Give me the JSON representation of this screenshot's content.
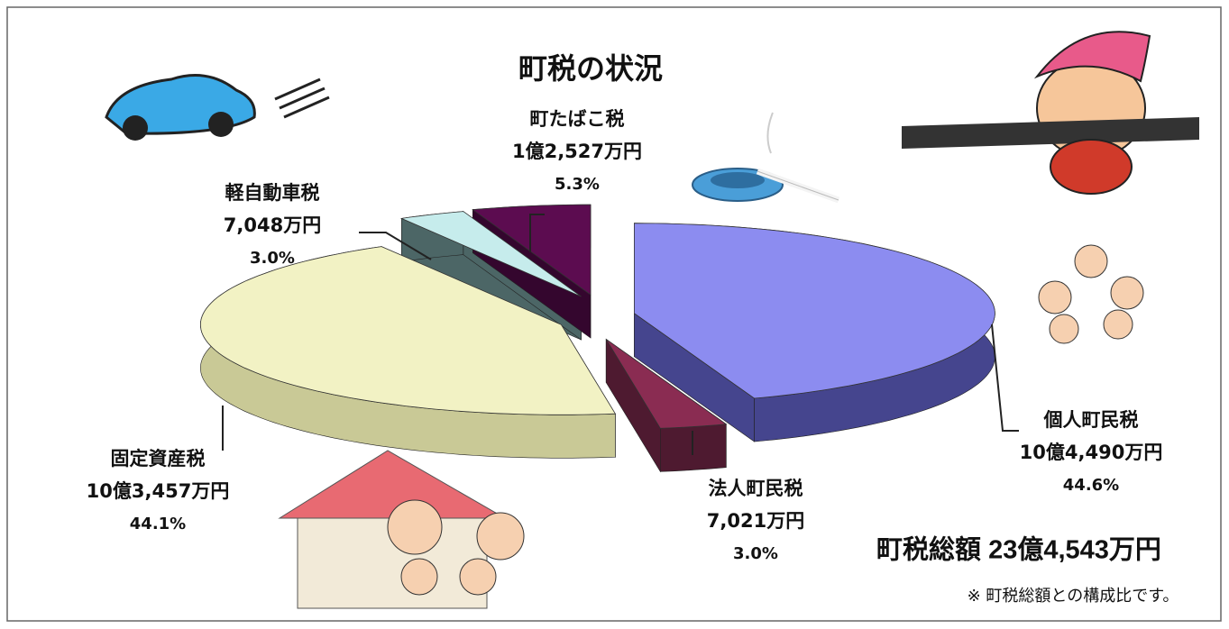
{
  "chart_data": {
    "type": "pie3d",
    "title": "町税の状況",
    "categories": [
      "個人町民税",
      "法人町民税",
      "固定資産税",
      "軽自動車税",
      "町たばこ税"
    ],
    "amount_labels": [
      "10億4,490万円",
      "7,021万円",
      "10億3,457万円",
      "7,048万円",
      "1億2,527万円"
    ],
    "values": [
      44.6,
      3.0,
      44.1,
      3.0,
      5.3
    ],
    "value_labels": [
      "44.6%",
      "3.0%",
      "44.1%",
      "3.0%",
      "5.3%"
    ],
    "colors": [
      "#8c8cf0",
      "#8a2c52",
      "#f2f2c4",
      "#c6ecec",
      "#5c0c50"
    ],
    "side_colors": [
      "#45458e",
      "#4e1a30",
      "#c9c996",
      "#4c6666",
      "#34062e"
    ],
    "total": "町税総額 23億4,543万円",
    "note": "※ 町税総額との構成比です。"
  }
}
